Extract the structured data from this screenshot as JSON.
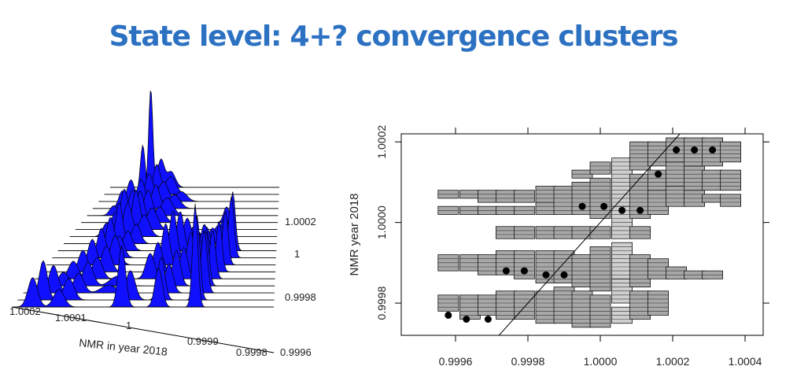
{
  "slide": {
    "title": "State level: 4+? convergence clusters"
  },
  "chart_data": [
    {
      "type": "ridgeline-3d",
      "xlabel": "NMR in year 2018",
      "ylabel": "",
      "x_ticks": [
        "1.0002",
        "1.0001",
        "1",
        "0.9999",
        "0.9998",
        "0.9996"
      ],
      "depth_ticks": [
        "1.0002",
        "1",
        "0.9998",
        "0.9996"
      ],
      "fill_color": "#1010ff",
      "n_ridges": 18,
      "ridges": [
        {
          "peaks": [
            [
              0.24,
              1.0,
              0.012
            ],
            [
              0.3,
              0.28,
              0.02
            ],
            [
              0.36,
              0.16,
              0.025
            ]
          ]
        },
        {
          "peaks": [
            [
              0.22,
              0.5,
              0.014
            ],
            [
              0.3,
              0.3,
              0.02
            ],
            [
              0.38,
              0.18,
              0.03
            ]
          ]
        },
        {
          "peaks": [
            [
              0.18,
              0.22,
              0.02
            ],
            [
              0.28,
              0.28,
              0.022
            ],
            [
              0.36,
              0.2,
              0.025
            ],
            [
              0.46,
              0.1,
              0.03
            ]
          ]
        },
        {
          "peaks": [
            [
              0.16,
              0.18,
              0.02
            ],
            [
              0.26,
              0.3,
              0.022
            ],
            [
              0.34,
              0.24,
              0.02
            ],
            [
              0.44,
              0.14,
              0.03
            ]
          ]
        },
        {
          "peaks": [
            [
              0.14,
              0.1,
              0.02
            ],
            [
              0.24,
              0.26,
              0.022
            ],
            [
              0.32,
              0.26,
              0.02
            ],
            [
              0.42,
              0.18,
              0.03
            ]
          ]
        },
        {
          "peaks": [
            [
              0.22,
              0.34,
              0.018
            ],
            [
              0.3,
              0.32,
              0.02
            ],
            [
              0.4,
              0.16,
              0.025
            ],
            [
              0.74,
              0.16,
              0.015
            ]
          ]
        },
        {
          "peaks": [
            [
              0.2,
              0.18,
              0.02
            ],
            [
              0.3,
              0.4,
              0.018
            ],
            [
              0.38,
              0.22,
              0.025
            ],
            [
              0.74,
              0.12,
              0.015
            ]
          ]
        },
        {
          "peaks": [
            [
              0.18,
              0.14,
              0.02
            ],
            [
              0.28,
              0.34,
              0.02
            ],
            [
              0.36,
              0.22,
              0.025
            ],
            [
              0.6,
              0.1,
              0.02
            ],
            [
              0.72,
              0.12,
              0.02
            ]
          ]
        },
        {
          "peaks": [
            [
              0.26,
              0.42,
              0.016
            ],
            [
              0.34,
              0.2,
              0.02
            ],
            [
              0.58,
              0.26,
              0.018
            ],
            [
              0.7,
              0.16,
              0.02
            ]
          ]
        },
        {
          "peaks": [
            [
              0.24,
              0.34,
              0.018
            ],
            [
              0.32,
              0.2,
              0.02
            ],
            [
              0.56,
              0.4,
              0.016
            ],
            [
              0.68,
              0.24,
              0.018
            ],
            [
              0.8,
              0.6,
              0.012
            ]
          ]
        },
        {
          "peaks": [
            [
              0.22,
              0.3,
              0.018
            ],
            [
              0.3,
              0.22,
              0.02
            ],
            [
              0.54,
              0.48,
              0.016
            ],
            [
              0.68,
              0.34,
              0.018
            ],
            [
              0.8,
              0.62,
              0.012
            ]
          ]
        },
        {
          "peaks": [
            [
              0.2,
              0.26,
              0.018
            ],
            [
              0.3,
              0.3,
              0.02
            ],
            [
              0.52,
              0.42,
              0.016
            ],
            [
              0.66,
              0.36,
              0.016
            ],
            [
              0.78,
              0.55,
              0.012
            ]
          ]
        },
        {
          "peaks": [
            [
              0.18,
              0.22,
              0.018
            ],
            [
              0.28,
              0.26,
              0.02
            ],
            [
              0.5,
              0.3,
              0.018
            ],
            [
              0.64,
              0.4,
              0.016
            ],
            [
              0.76,
              0.52,
              0.012
            ]
          ]
        },
        {
          "peaks": [
            [
              0.16,
              0.18,
              0.02
            ],
            [
              0.26,
              0.22,
              0.02
            ],
            [
              0.48,
              0.26,
              0.018
            ],
            [
              0.62,
              0.32,
              0.016
            ],
            [
              0.74,
              0.5,
              0.012
            ]
          ]
        },
        {
          "peaks": [
            [
              0.14,
              0.14,
              0.02
            ],
            [
              0.24,
              0.24,
              0.02
            ],
            [
              0.36,
              0.1,
              0.03
            ],
            [
              0.6,
              0.36,
              0.016
            ],
            [
              0.72,
              0.56,
              0.012
            ]
          ]
        },
        {
          "peaks": [
            [
              0.12,
              0.28,
              0.018
            ],
            [
              0.22,
              0.2,
              0.02
            ],
            [
              0.34,
              0.08,
              0.03
            ],
            [
              0.58,
              0.3,
              0.016
            ],
            [
              0.72,
              0.64,
              0.012
            ]
          ]
        },
        {
          "peaks": [
            [
              0.1,
              0.4,
              0.016
            ],
            [
              0.2,
              0.22,
              0.02
            ],
            [
              0.44,
              0.3,
              0.018
            ],
            [
              0.56,
              0.44,
              0.014
            ],
            [
              0.7,
              0.86,
              0.011
            ]
          ]
        },
        {
          "peaks": [
            [
              0.08,
              0.3,
              0.018
            ],
            [
              0.18,
              0.18,
              0.02
            ],
            [
              0.42,
              0.62,
              0.014
            ],
            [
              0.56,
              0.4,
              0.014
            ],
            [
              0.7,
              1.05,
              0.01
            ]
          ]
        }
      ]
    },
    {
      "type": "scatter-boxes",
      "xlabel": "",
      "ylabel": "NMR year 2018",
      "xlim": [
        0.99945,
        1.00045
      ],
      "ylim": [
        0.99972,
        1.00022
      ],
      "x_ticks": [
        0.9996,
        0.9998,
        1.0,
        1.0002,
        1.0004
      ],
      "x_tick_labels": [
        "0.9996",
        "0.9998",
        "1.0000",
        "1.0002",
        "1.0004"
      ],
      "y_ticks": [
        0.9998,
        1.0,
        1.0002
      ],
      "y_tick_labels": [
        "0.9998",
        "1.0000",
        "1.0002"
      ],
      "diagonal": [
        [
          0.99972,
          0.99972
        ],
        [
          1.00022,
          1.00022
        ]
      ],
      "box_fill": "#a8a8a8",
      "box_fill_light": "#cfcfcf",
      "columns": [
        {
          "x": 0.99958,
          "boxes": [
            [
              0.99978,
              0.99982
            ],
            [
              0.99988,
              0.99992
            ],
            [
              1.00002,
              1.00004
            ],
            [
              1.00006,
              1.00008
            ]
          ]
        },
        {
          "x": 0.99964,
          "boxes": [
            [
              0.99976,
              0.99982
            ],
            [
              0.99988,
              0.99992
            ],
            [
              1.00002,
              1.00004
            ],
            [
              1.00006,
              1.00008
            ]
          ]
        },
        {
          "x": 0.99969,
          "boxes": [
            [
              0.99977,
              0.99982
            ],
            [
              0.99987,
              0.99992
            ],
            [
              1.00002,
              1.00004
            ],
            [
              1.00005,
              1.00008
            ]
          ]
        },
        {
          "x": 0.99974,
          "boxes": [
            [
              0.99976,
              0.99983
            ],
            [
              0.99987,
              0.99993
            ],
            [
              0.99996,
              0.99999
            ],
            [
              1.00002,
              1.00004
            ],
            [
              1.00005,
              1.00008
            ]
          ]
        },
        {
          "x": 0.99979,
          "boxes": [
            [
              0.99976,
              0.99983
            ],
            [
              0.99986,
              0.99993
            ],
            [
              0.99996,
              0.99999
            ],
            [
              1.00002,
              1.00004
            ],
            [
              1.00005,
              1.00008
            ]
          ]
        },
        {
          "x": 0.99985,
          "boxes": [
            [
              0.99975,
              0.99983
            ],
            [
              0.99985,
              0.99993
            ],
            [
              0.99996,
              0.99999
            ],
            [
              1.00002,
              1.00005
            ],
            [
              1.00005,
              1.00009
            ]
          ]
        },
        {
          "x": 0.9999,
          "boxes": [
            [
              0.99975,
              0.99984
            ],
            [
              0.99985,
              0.99993
            ],
            [
              0.99996,
              0.99999
            ],
            [
              1.00002,
              1.00009
            ]
          ]
        },
        {
          "x": 0.99995,
          "boxes": [
            [
              0.99974,
              0.99983
            ],
            [
              0.99984,
              0.99992
            ],
            [
              0.99996,
              0.99999
            ],
            [
              1.00002,
              1.0001
            ],
            [
              1.00011,
              1.00013
            ]
          ]
        },
        {
          "x": 1.0,
          "boxes": [
            [
              0.99974,
              0.99982
            ],
            [
              0.99983,
              0.99994
            ],
            [
              0.99996,
              0.99999
            ],
            [
              1.00001,
              1.00011
            ],
            [
              1.00012,
              1.00015
            ]
          ]
        },
        {
          "x": 1.00006,
          "light": true,
          "boxes": [
            [
              0.99975,
              0.99979
            ],
            [
              0.9998,
              0.99986
            ],
            [
              0.99986,
              0.99995
            ],
            [
              0.99996,
              1.00004
            ],
            [
              1.00004,
              1.00016
            ]
          ]
        },
        {
          "x": 1.00011,
          "boxes": [
            [
              0.99976,
              0.99983
            ],
            [
              0.99984,
              0.99992
            ],
            [
              0.99996,
              0.99999
            ],
            [
              1.00001,
              1.00012
            ],
            [
              1.00013,
              1.0002
            ]
          ]
        },
        {
          "x": 1.00016,
          "boxes": [
            [
              0.99977,
              0.99983
            ],
            [
              0.99986,
              0.99991
            ],
            [
              1.00002,
              1.00008
            ],
            [
              1.00008,
              1.00013
            ],
            [
              1.00014,
              1.0002
            ]
          ]
        },
        {
          "x": 1.00021,
          "boxes": [
            [
              0.99986,
              0.99989
            ],
            [
              1.00004,
              1.00009
            ],
            [
              1.00009,
              1.00015
            ],
            [
              1.00015,
              1.00021
            ]
          ]
        },
        {
          "x": 1.00026,
          "boxes": [
            [
              0.99986,
              0.99988
            ],
            [
              1.00004,
              1.00008
            ],
            [
              1.00008,
              1.00014
            ],
            [
              1.00014,
              1.00021
            ]
          ]
        },
        {
          "x": 1.00031,
          "boxes": [
            [
              0.99986,
              0.99988
            ],
            [
              1.00005,
              1.00007
            ],
            [
              1.00008,
              1.00013
            ],
            [
              1.00014,
              1.00021
            ]
          ]
        },
        {
          "x": 1.00036,
          "boxes": [
            [
              1.00004,
              1.00007
            ],
            [
              1.00008,
              1.00013
            ],
            [
              1.00015,
              1.0002
            ]
          ]
        }
      ],
      "points": [
        [
          0.99958,
          0.99977
        ],
        [
          0.99963,
          0.99976
        ],
        [
          0.99969,
          0.99976
        ],
        [
          0.99974,
          0.99988
        ],
        [
          0.99979,
          0.99988
        ],
        [
          0.99985,
          0.99987
        ],
        [
          0.9999,
          0.99987
        ],
        [
          0.99995,
          1.00004
        ],
        [
          1.00001,
          1.00004
        ],
        [
          1.00006,
          1.00003
        ],
        [
          1.00011,
          1.00003
        ],
        [
          1.00016,
          1.00012
        ],
        [
          1.00021,
          1.00018
        ],
        [
          1.00026,
          1.00018
        ],
        [
          1.00031,
          1.00018
        ]
      ]
    }
  ]
}
